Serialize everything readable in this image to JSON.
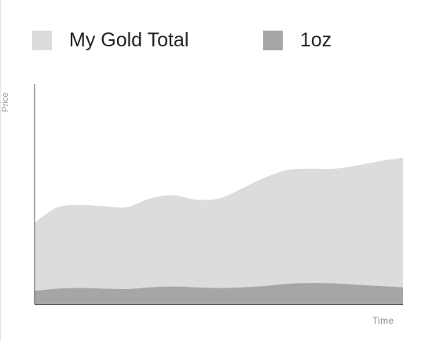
{
  "chart_data": {
    "type": "area",
    "title": "",
    "xlabel": "Time",
    "ylabel": "Price",
    "grid": false,
    "legend_position": "top",
    "x": [
      0,
      1,
      2,
      3,
      4,
      5,
      6,
      7,
      8,
      9,
      10,
      11,
      12,
      13,
      14,
      15,
      16
    ],
    "ylim": [
      0,
      100
    ],
    "series": [
      {
        "name": "My Gold Total",
        "color": "#dcdcdc",
        "values": [
          37,
          44,
          45,
          44.5,
          44,
          48,
          49.5,
          47.5,
          48,
          52.5,
          57.5,
          61,
          61.5,
          61.5,
          63,
          65,
          66.5
        ]
      },
      {
        "name": "1oz",
        "color": "#a6a6a6",
        "values": [
          6,
          7,
          7.3,
          7,
          6.8,
          7.6,
          8,
          7.6,
          7.3,
          7.6,
          8.2,
          9.2,
          9.6,
          9.4,
          8.8,
          8.2,
          7.6
        ]
      }
    ]
  },
  "legend": {
    "items": [
      {
        "label": "My Gold Total",
        "color": "#dcdcdc"
      },
      {
        "label": "1oz",
        "color": "#a6a6a6"
      }
    ]
  },
  "axes": {
    "axis_color": "#555555"
  }
}
